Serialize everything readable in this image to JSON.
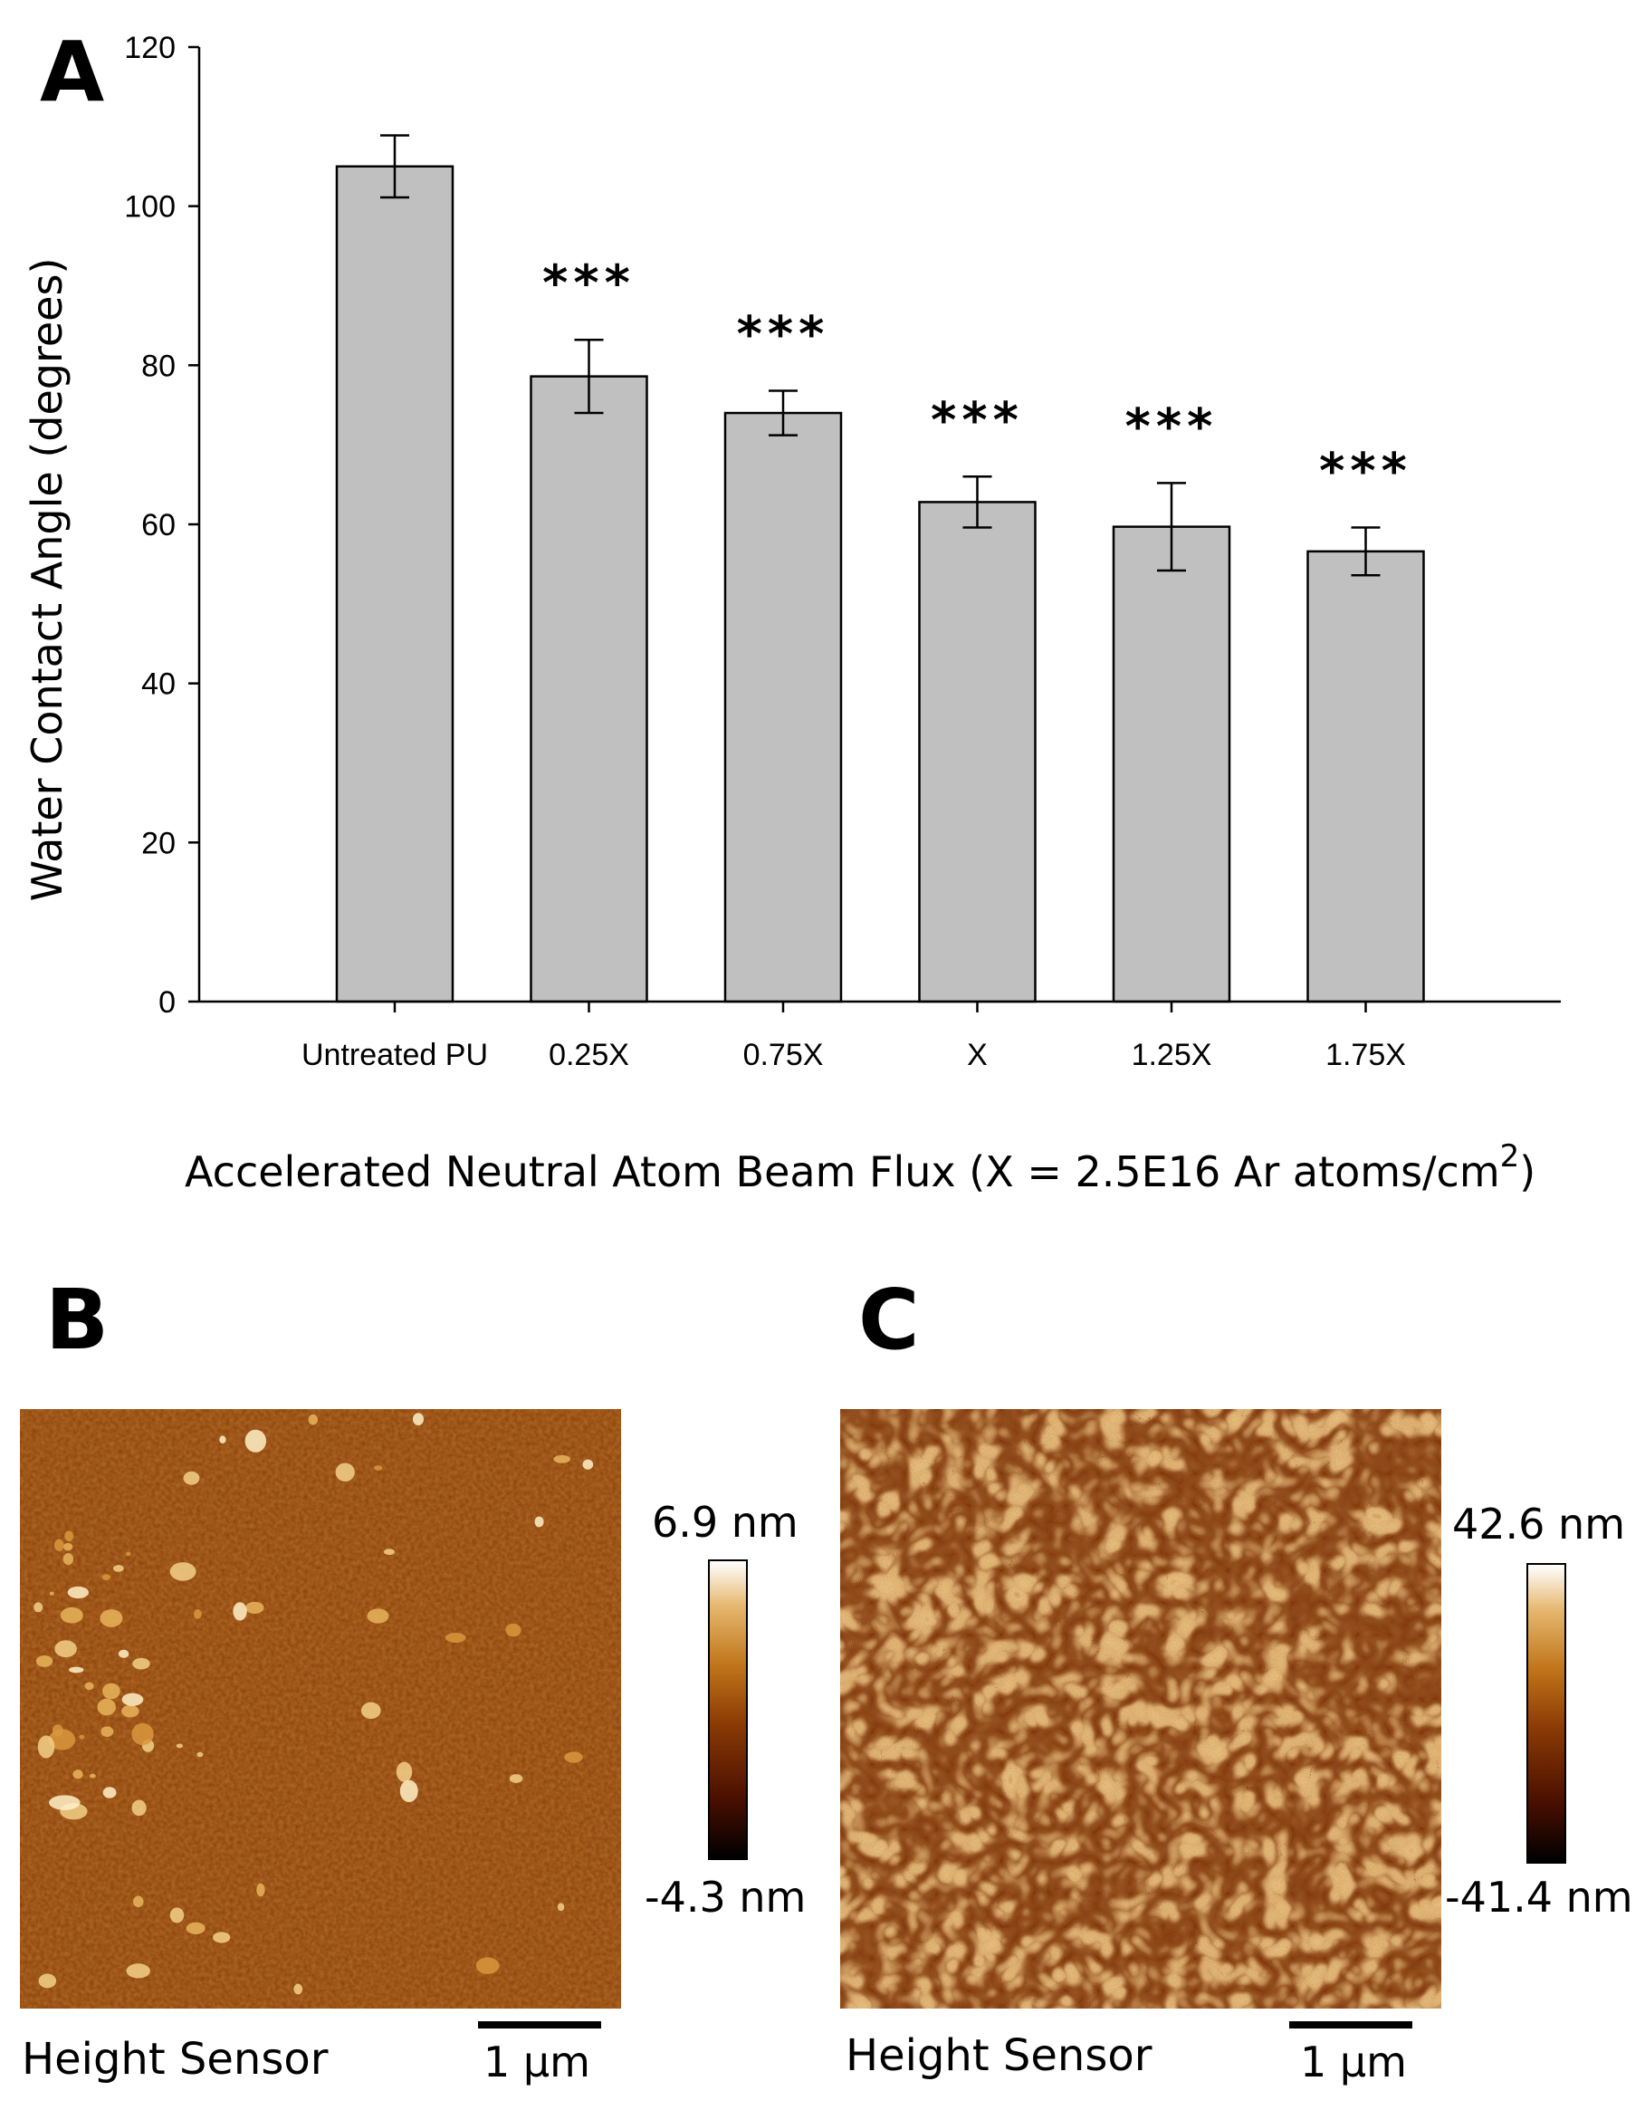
{
  "panels": {
    "a_letter": "A",
    "b_letter": "B",
    "c_letter": "C"
  },
  "chart_data": {
    "type": "bar",
    "categories": [
      "Untreated PU",
      "0.25X",
      "0.75X",
      "X",
      "1.25X",
      "1.75X"
    ],
    "values": [
      105,
      78.6,
      74,
      62.8,
      59.7,
      56.6
    ],
    "errors": [
      3.9,
      4.6,
      2.8,
      3.2,
      5.5,
      3.0
    ],
    "significance": [
      "",
      "***",
      "***",
      "***",
      "***",
      "***"
    ],
    "ylabel": "Water Contact Angle (degrees)",
    "xlabel": "Accelerated Neutral Atom Beam Flux (X = 2.5E16 Ar atoms/cm",
    "xlabel_sup": "2",
    "xlabel_end": ")",
    "ylim": [
      0,
      120
    ],
    "yticks": [
      0,
      20,
      40,
      60,
      80,
      100,
      120
    ],
    "grid": false,
    "colors": {
      "bar": "#c0c0c0",
      "outline": "#000000"
    }
  },
  "afm": {
    "b": {
      "max_label": "6.9 nm",
      "min_label": "-4.3 nm",
      "sensor": "Height Sensor",
      "scale": "1 µm"
    },
    "c": {
      "max_label": "42.6 nm",
      "min_label": "-41.4 nm",
      "sensor": "Height Sensor",
      "scale": "1 µm"
    },
    "colormap": [
      "#000000",
      "#4a0f00",
      "#8a3a05",
      "#c0751a",
      "#e6b870",
      "#ffffff"
    ]
  }
}
